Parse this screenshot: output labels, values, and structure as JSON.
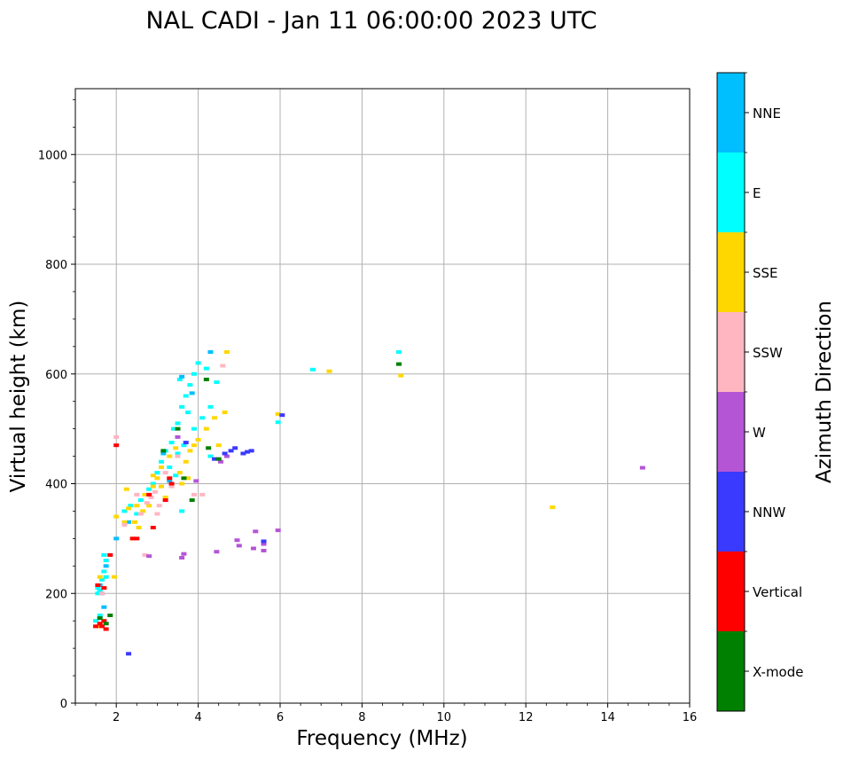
{
  "chart_data": {
    "type": "scatter",
    "title": "NAL CADI - Jan 11 06:00:00 2023 UTC",
    "xlabel": "Frequency (MHz)",
    "ylabel": "Virtual height (km)",
    "xlim": [
      1,
      16
    ],
    "ylim": [
      0,
      1120
    ],
    "xticks": [
      2,
      4,
      6,
      8,
      10,
      12,
      14,
      16
    ],
    "yticks": [
      0,
      200,
      400,
      600,
      800,
      1000
    ],
    "grid": true,
    "colorbar": {
      "label": "Azimuth Direction",
      "categories": [
        "X-mode",
        "Vertical",
        "NNW",
        "W",
        "SSW",
        "SSE",
        "E",
        "NNE"
      ],
      "colors": [
        "#008000",
        "#ff0000",
        "#3a3aff",
        "#b455d6",
        "#ffb6c1",
        "#ffd700",
        "#00ffff",
        "#00bfff"
      ]
    },
    "series": [
      {
        "name": "E",
        "color": "#00ffff",
        "points": [
          [
            1.55,
            210
          ],
          [
            1.6,
            205
          ],
          [
            1.65,
            225
          ],
          [
            1.7,
            240
          ],
          [
            1.75,
            260
          ],
          [
            1.5,
            150
          ],
          [
            1.6,
            160
          ],
          [
            1.55,
            200
          ],
          [
            1.7,
            270
          ],
          [
            1.75,
            230
          ],
          [
            2.5,
            345
          ],
          [
            2.6,
            370
          ],
          [
            2.8,
            390
          ],
          [
            3.0,
            420
          ],
          [
            3.1,
            440
          ],
          [
            3.2,
            460
          ],
          [
            3.35,
            475
          ],
          [
            3.4,
            500
          ],
          [
            3.5,
            510
          ],
          [
            3.6,
            540
          ],
          [
            3.7,
            560
          ],
          [
            3.8,
            580
          ],
          [
            3.9,
            600
          ],
          [
            4.0,
            620
          ],
          [
            4.2,
            610
          ],
          [
            3.3,
            430
          ],
          [
            3.5,
            455
          ],
          [
            3.65,
            470
          ],
          [
            3.9,
            500
          ],
          [
            4.1,
            520
          ],
          [
            4.3,
            540
          ],
          [
            4.45,
            585
          ],
          [
            3.55,
            590
          ],
          [
            2.35,
            360
          ],
          [
            3.75,
            530
          ],
          [
            3.6,
            350
          ],
          [
            2.9,
            400
          ],
          [
            4.3,
            450
          ],
          [
            2.2,
            350
          ],
          [
            3.45,
            415
          ],
          [
            6.8,
            608
          ],
          [
            8.9,
            640
          ],
          [
            5.95,
            512
          ]
        ]
      },
      {
        "name": "NNE",
        "color": "#00bfff",
        "points": [
          [
            1.6,
            215
          ],
          [
            1.65,
            200
          ],
          [
            1.75,
            250
          ],
          [
            2.0,
            300
          ],
          [
            2.3,
            330
          ],
          [
            3.6,
            595
          ],
          [
            3.85,
            565
          ],
          [
            4.3,
            640
          ],
          [
            1.7,
            175
          ],
          [
            3.15,
            455
          ],
          [
            3.3,
            405
          ]
        ]
      },
      {
        "name": "SSE",
        "color": "#ffd700",
        "points": [
          [
            1.55,
            140
          ],
          [
            1.6,
            230
          ],
          [
            2.0,
            340
          ],
          [
            2.2,
            330
          ],
          [
            2.3,
            355
          ],
          [
            2.5,
            360
          ],
          [
            2.7,
            380
          ],
          [
            2.9,
            395
          ],
          [
            3.0,
            410
          ],
          [
            3.1,
            430
          ],
          [
            3.3,
            450
          ],
          [
            3.6,
            400
          ],
          [
            3.7,
            440
          ],
          [
            3.8,
            460
          ],
          [
            4.0,
            480
          ],
          [
            4.2,
            500
          ],
          [
            4.4,
            520
          ],
          [
            4.65,
            530
          ],
          [
            4.7,
            640
          ],
          [
            3.9,
            470
          ],
          [
            3.45,
            465
          ],
          [
            2.45,
            330
          ],
          [
            2.65,
            350
          ],
          [
            2.8,
            360
          ],
          [
            3.2,
            375
          ],
          [
            3.55,
            420
          ],
          [
            2.4,
            300
          ],
          [
            2.55,
            320
          ],
          [
            7.2,
            605
          ],
          [
            8.95,
            597
          ],
          [
            12.65,
            357
          ],
          [
            5.95,
            527
          ],
          [
            4.5,
            470
          ],
          [
            2.9,
            415
          ],
          [
            3.1,
            395
          ],
          [
            2.25,
            390
          ],
          [
            3.75,
            410
          ],
          [
            1.95,
            230
          ]
        ]
      },
      {
        "name": "SSW",
        "color": "#ffb6c1",
        "points": [
          [
            1.65,
            200
          ],
          [
            2.0,
            485
          ],
          [
            2.6,
            345
          ],
          [
            2.7,
            270
          ],
          [
            2.75,
            365
          ],
          [
            2.85,
            375
          ],
          [
            2.95,
            385
          ],
          [
            3.05,
            360
          ],
          [
            3.2,
            420
          ],
          [
            3.5,
            450
          ],
          [
            3.9,
            380
          ],
          [
            4.1,
            380
          ],
          [
            4.6,
            615
          ],
          [
            2.2,
            325
          ],
          [
            2.5,
            380
          ],
          [
            3.35,
            395
          ],
          [
            3.0,
            345
          ]
        ]
      },
      {
        "name": "W",
        "color": "#b455d6",
        "points": [
          [
            2.8,
            268
          ],
          [
            3.6,
            265
          ],
          [
            3.65,
            272
          ],
          [
            4.45,
            276
          ],
          [
            4.95,
            297
          ],
          [
            5.0,
            287
          ],
          [
            5.4,
            313
          ],
          [
            5.35,
            282
          ],
          [
            5.6,
            290
          ],
          [
            5.6,
            278
          ],
          [
            5.95,
            315
          ],
          [
            4.55,
            440
          ],
          [
            4.7,
            450
          ],
          [
            14.85,
            429
          ],
          [
            3.95,
            405
          ],
          [
            3.5,
            485
          ]
        ]
      },
      {
        "name": "NNW",
        "color": "#3a3aff",
        "points": [
          [
            2.3,
            90
          ],
          [
            4.8,
            460
          ],
          [
            4.9,
            465
          ],
          [
            5.1,
            455
          ],
          [
            5.3,
            460
          ],
          [
            5.6,
            295
          ],
          [
            6.05,
            525
          ],
          [
            4.65,
            455
          ],
          [
            4.4,
            445
          ],
          [
            5.2,
            458
          ],
          [
            3.7,
            475
          ]
        ]
      },
      {
        "name": "Vertical",
        "color": "#ff0000",
        "points": [
          [
            1.5,
            140
          ],
          [
            1.6,
            145
          ],
          [
            1.7,
            150
          ],
          [
            1.75,
            135
          ],
          [
            1.55,
            215
          ],
          [
            1.7,
            210
          ],
          [
            2.0,
            470
          ],
          [
            2.4,
            300
          ],
          [
            2.5,
            300
          ],
          [
            2.9,
            320
          ],
          [
            3.35,
            400
          ],
          [
            3.3,
            410
          ],
          [
            2.8,
            380
          ],
          [
            3.2,
            370
          ],
          [
            1.85,
            270
          ],
          [
            1.65,
            140
          ]
        ]
      },
      {
        "name": "X-mode",
        "color": "#008000",
        "points": [
          [
            1.6,
            155
          ],
          [
            1.75,
            145
          ],
          [
            3.85,
            370
          ],
          [
            4.2,
            590
          ],
          [
            8.9,
            618
          ],
          [
            4.5,
            445
          ],
          [
            3.65,
            410
          ],
          [
            3.15,
            460
          ],
          [
            4.25,
            465
          ],
          [
            3.5,
            500
          ],
          [
            1.85,
            160
          ]
        ]
      }
    ]
  }
}
